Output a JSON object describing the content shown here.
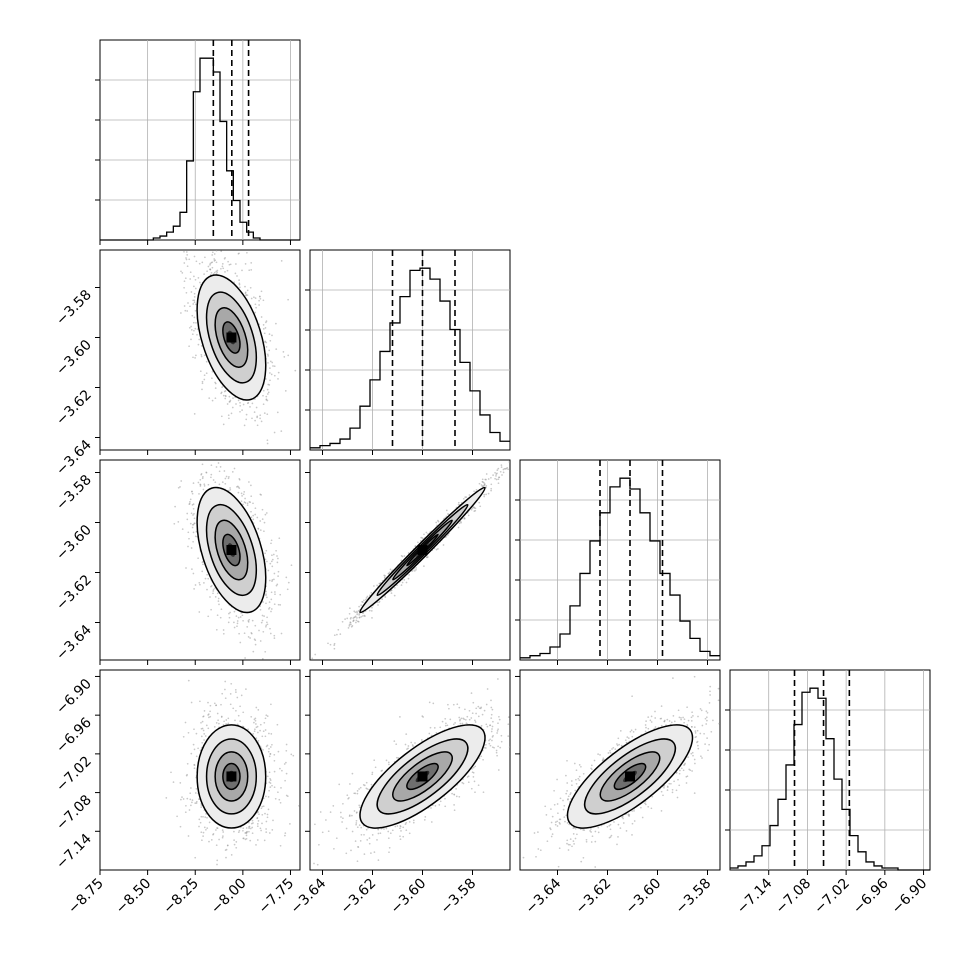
{
  "chart_data": {
    "type": "corner",
    "grid": true,
    "colors": {
      "line": "#000000",
      "grid": "#b0b0b0",
      "scatter": "#9a9a9a"
    },
    "parameters": [
      {
        "id": "p0",
        "range": [
          -8.75,
          -7.7
        ],
        "ticks": [
          -8.75,
          -8.5,
          -8.25,
          -8.0,
          -7.75
        ],
        "tick_labels": [
          "−8.75",
          "−8.50",
          "−8.25",
          "−8.00",
          "−7.75"
        ],
        "quantiles": [
          -8.155,
          -8.058,
          -7.97
        ],
        "mean": -8.06,
        "sd": 0.09
      },
      {
        "id": "p1",
        "range": [
          -3.645,
          -3.565
        ],
        "ticks": [
          -3.64,
          -3.62,
          -3.6,
          -3.58
        ],
        "tick_labels": [
          "−3.64",
          "−3.62",
          "−3.60",
          "−3.58"
        ],
        "quantiles": [
          -3.612,
          -3.6,
          -3.587
        ],
        "mean": -3.6,
        "sd": 0.0125
      },
      {
        "id": "p2",
        "range": [
          -3.655,
          -3.575
        ],
        "ticks": [
          -3.64,
          -3.62,
          -3.6,
          -3.58
        ],
        "tick_labels": [
          "−3.64",
          "−3.62",
          "−3.60",
          "−3.58"
        ],
        "quantiles": [
          -3.623,
          -3.611,
          -3.598
        ],
        "mean": -3.611,
        "sd": 0.0125
      },
      {
        "id": "p3",
        "range": [
          -7.2,
          -6.89
        ],
        "ticks": [
          -7.14,
          -7.08,
          -7.02,
          -6.96,
          -6.9
        ],
        "tick_labels": [
          "−7.14",
          "−7.08",
          "−7.02",
          "−6.96",
          "−6.90"
        ],
        "quantiles": [
          -7.1,
          -7.055,
          -7.015
        ],
        "mean": -7.055,
        "sd": 0.04
      }
    ],
    "histograms": [
      {
        "param": 0,
        "bin_width": 0.035,
        "start": -8.75,
        "counts": [
          0,
          0,
          0,
          0,
          0,
          0,
          0,
          0,
          1,
          2,
          4,
          7,
          14,
          40,
          75,
          92,
          92,
          85,
          60,
          35,
          20,
          9,
          4,
          1,
          0,
          0,
          0,
          0,
          0,
          0
        ]
      },
      {
        "param": 1,
        "bin_width": 0.004,
        "start": -3.645,
        "counts": [
          1,
          2,
          3,
          5,
          10,
          20,
          32,
          45,
          58,
          70,
          82,
          83,
          78,
          68,
          55,
          40,
          27,
          16,
          8,
          4
        ]
      },
      {
        "param": 2,
        "bin_width": 0.004,
        "start": -3.655,
        "counts": [
          1,
          2,
          3,
          6,
          12,
          25,
          40,
          55,
          68,
          80,
          84,
          79,
          68,
          55,
          40,
          30,
          18,
          10,
          4,
          2
        ]
      },
      {
        "param": 3,
        "bin_width": 0.0124,
        "start": -7.2,
        "counts": [
          1,
          2,
          4,
          7,
          12,
          22,
          35,
          52,
          72,
          88,
          90,
          85,
          65,
          45,
          30,
          17,
          9,
          4,
          2,
          1,
          1,
          0,
          0,
          0,
          0
        ]
      }
    ],
    "panels_2d": [
      {
        "x": 0,
        "y": 1,
        "correlation": -0.45
      },
      {
        "x": 0,
        "y": 2,
        "correlation": -0.45
      },
      {
        "x": 1,
        "y": 2,
        "correlation": 0.99
      },
      {
        "x": 0,
        "y": 3,
        "correlation": 0.0
      },
      {
        "x": 1,
        "y": 3,
        "correlation": 0.75
      },
      {
        "x": 2,
        "y": 3,
        "correlation": 0.75
      }
    ]
  }
}
